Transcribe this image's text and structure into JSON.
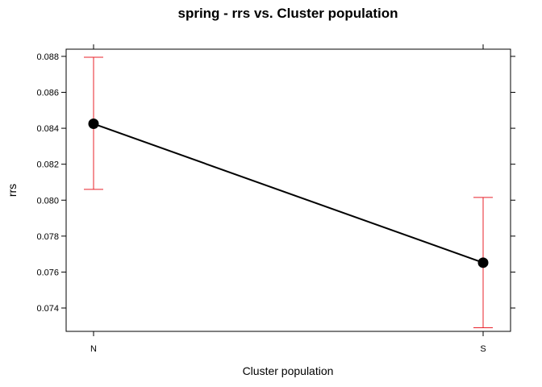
{
  "chart_data": {
    "type": "line",
    "title": "spring - rrs vs. Cluster population",
    "xlabel": "Cluster population",
    "ylabel": "rrs",
    "categories": [
      "N",
      "S"
    ],
    "series": [
      {
        "values": [
          0.08425,
          0.07652
        ],
        "lower": [
          0.0806,
          0.0729
        ],
        "upper": [
          0.08795,
          0.08015
        ]
      }
    ],
    "ylim": [
      0.0727,
      0.0884
    ],
    "yticks": [
      0.074,
      0.076,
      0.078,
      0.08,
      0.082,
      0.084,
      0.086,
      0.088
    ],
    "ytick_labels": [
      "0.074",
      "0.076",
      "0.078",
      "0.080",
      "0.082",
      "0.084",
      "0.086",
      "0.088"
    ],
    "grid": false,
    "colors": {
      "line": "#000000",
      "point": "#000000",
      "errorbar": "#e8202a",
      "frame": "#000000"
    }
  }
}
